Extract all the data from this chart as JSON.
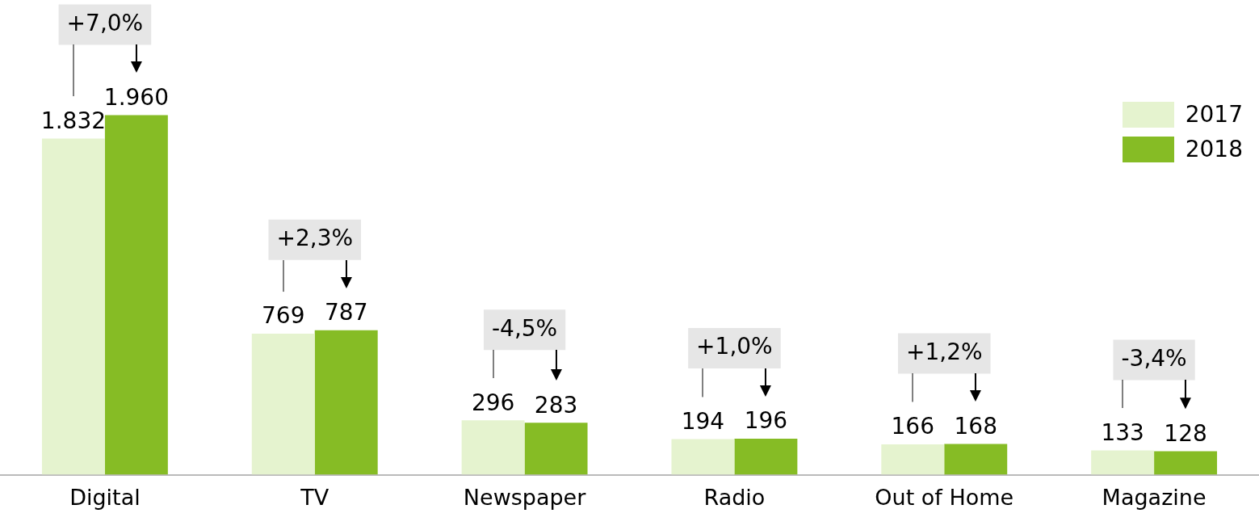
{
  "chart_data": {
    "type": "bar",
    "categories": [
      "Digital",
      "TV",
      "Newspaper",
      "Radio",
      "Out of Home",
      "Magazine"
    ],
    "series": [
      {
        "name": "2017",
        "color": "#e5f3cf",
        "values": [
          1832,
          769,
          296,
          194,
          166,
          133
        ],
        "value_labels": [
          "1.832",
          "769",
          "296",
          "194",
          "166",
          "133"
        ]
      },
      {
        "name": "2018",
        "color": "#86bc25",
        "values": [
          1960,
          787,
          283,
          196,
          168,
          128
        ],
        "value_labels": [
          "1.960",
          "787",
          "283",
          "196",
          "168",
          "128"
        ]
      }
    ],
    "annotations": [
      "+7,0%",
      "+2,3%",
      "-4,5%",
      "+1,0%",
      "+1,2%",
      "-3,4%"
    ],
    "legend": "top right",
    "grid": false
  }
}
